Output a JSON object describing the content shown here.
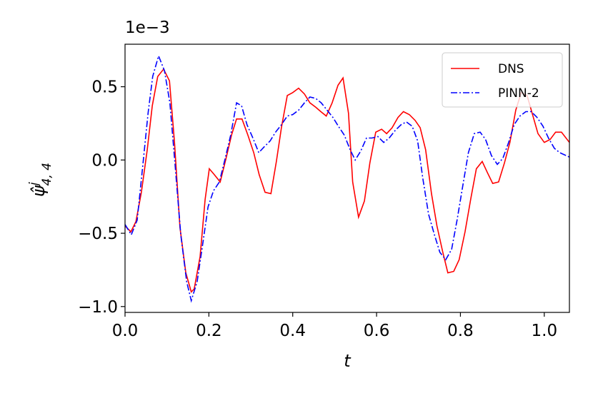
{
  "chart_data": {
    "type": "line",
    "offset_label": "1e−3",
    "xlabel": "t",
    "ylabel": {
      "base": "ψ̂",
      "sup": "j",
      "sub": "4, 4"
    },
    "xlim": [
      0,
      1.06
    ],
    "ylim": [
      -1.04,
      0.79
    ],
    "xticks": [
      {
        "value": 0,
        "label": "0.0"
      },
      {
        "value": 0.2,
        "label": "0.2"
      },
      {
        "value": 0.4,
        "label": "0.4"
      },
      {
        "value": 0.6,
        "label": "0.6"
      },
      {
        "value": 0.8,
        "label": "0.8"
      },
      {
        "value": 1.0,
        "label": "1.0"
      }
    ],
    "yticks": [
      {
        "value": -1.0,
        "label": "−1.0"
      },
      {
        "value": -0.5,
        "label": "−0.5"
      },
      {
        "value": 0,
        "label": "0.0"
      },
      {
        "value": 0.5,
        "label": "0.5"
      }
    ],
    "legend": "upper right",
    "series": [
      {
        "name": "DNS",
        "color": "#ff0000",
        "linestyle": "solid",
        "x": [
          0.0,
          0.014,
          0.026,
          0.039,
          0.053,
          0.065,
          0.078,
          0.092,
          0.106,
          0.118,
          0.131,
          0.145,
          0.158,
          0.165,
          0.179,
          0.191,
          0.201,
          0.213,
          0.227,
          0.24,
          0.254,
          0.266,
          0.279,
          0.293,
          0.307,
          0.32,
          0.334,
          0.348,
          0.361,
          0.373,
          0.387,
          0.4,
          0.414,
          0.428,
          0.441,
          0.455,
          0.467,
          0.48,
          0.494,
          0.508,
          0.52,
          0.533,
          0.543,
          0.557,
          0.571,
          0.584,
          0.598,
          0.612,
          0.624,
          0.637,
          0.651,
          0.664,
          0.678,
          0.692,
          0.704,
          0.717,
          0.731,
          0.744,
          0.758,
          0.77,
          0.784,
          0.797,
          0.811,
          0.825,
          0.838,
          0.852,
          0.865,
          0.877,
          0.891,
          0.905,
          0.918,
          0.932,
          0.945,
          0.959,
          0.971,
          0.985,
          1.0,
          1.014,
          1.027,
          1.041,
          1.06
        ],
        "values": [
          -0.45,
          -0.49,
          -0.42,
          -0.22,
          0.07,
          0.37,
          0.57,
          0.62,
          0.54,
          0.12,
          -0.46,
          -0.77,
          -0.9,
          -0.88,
          -0.66,
          -0.27,
          -0.06,
          -0.1,
          -0.15,
          0.0,
          0.17,
          0.28,
          0.28,
          0.17,
          0.05,
          -0.1,
          -0.22,
          -0.23,
          -0.01,
          0.22,
          0.44,
          0.46,
          0.49,
          0.45,
          0.39,
          0.36,
          0.33,
          0.3,
          0.39,
          0.51,
          0.56,
          0.32,
          -0.15,
          -0.39,
          -0.28,
          -0.02,
          0.19,
          0.21,
          0.18,
          0.22,
          0.29,
          0.33,
          0.31,
          0.27,
          0.22,
          0.07,
          -0.23,
          -0.45,
          -0.63,
          -0.77,
          -0.76,
          -0.68,
          -0.49,
          -0.26,
          -0.06,
          -0.01,
          -0.09,
          -0.16,
          -0.15,
          -0.02,
          0.12,
          0.34,
          0.46,
          0.44,
          0.32,
          0.18,
          0.12,
          0.14,
          0.19,
          0.19,
          0.12
        ]
      },
      {
        "name": "PINN-2",
        "color": "#0000ff",
        "linestyle": "dashdot",
        "x": [
          0,
          0.015,
          0.029,
          0.043,
          0.055,
          0.066,
          0.08,
          0.094,
          0.107,
          0.119,
          0.133,
          0.147,
          0.158,
          0.172,
          0.186,
          0.198,
          0.211,
          0.225,
          0.238,
          0.252,
          0.266,
          0.278,
          0.291,
          0.305,
          0.319,
          0.332,
          0.346,
          0.359,
          0.373,
          0.387,
          0.4,
          0.414,
          0.428,
          0.441,
          0.455,
          0.468,
          0.482,
          0.496,
          0.509,
          0.523,
          0.537,
          0.549,
          0.562,
          0.576,
          0.589,
          0.603,
          0.617,
          0.63,
          0.644,
          0.658,
          0.671,
          0.685,
          0.698,
          0.71,
          0.724,
          0.738,
          0.751,
          0.765,
          0.779,
          0.792,
          0.806,
          0.819,
          0.833,
          0.847,
          0.86,
          0.874,
          0.888,
          0.901,
          0.915,
          0.928,
          0.942,
          0.956,
          0.969,
          0.983,
          0.997,
          1.01,
          1.024,
          1.037,
          1.06
        ],
        "values": [
          -0.44,
          -0.51,
          -0.41,
          -0.02,
          0.32,
          0.57,
          0.71,
          0.61,
          0.39,
          -0.02,
          -0.51,
          -0.83,
          -0.96,
          -0.83,
          -0.56,
          -0.32,
          -0.21,
          -0.15,
          0.0,
          0.17,
          0.39,
          0.37,
          0.24,
          0.15,
          0.05,
          0.09,
          0.13,
          0.19,
          0.24,
          0.3,
          0.31,
          0.34,
          0.39,
          0.43,
          0.42,
          0.39,
          0.34,
          0.29,
          0.23,
          0.17,
          0.07,
          0.0,
          0.06,
          0.15,
          0.15,
          0.16,
          0.12,
          0.15,
          0.2,
          0.24,
          0.26,
          0.23,
          0.13,
          -0.12,
          -0.37,
          -0.51,
          -0.63,
          -0.68,
          -0.61,
          -0.41,
          -0.17,
          0.05,
          0.18,
          0.19,
          0.14,
          0.03,
          -0.03,
          0.01,
          0.12,
          0.24,
          0.3,
          0.33,
          0.33,
          0.29,
          0.23,
          0.15,
          0.08,
          0.05,
          0.02
        ]
      }
    ]
  }
}
